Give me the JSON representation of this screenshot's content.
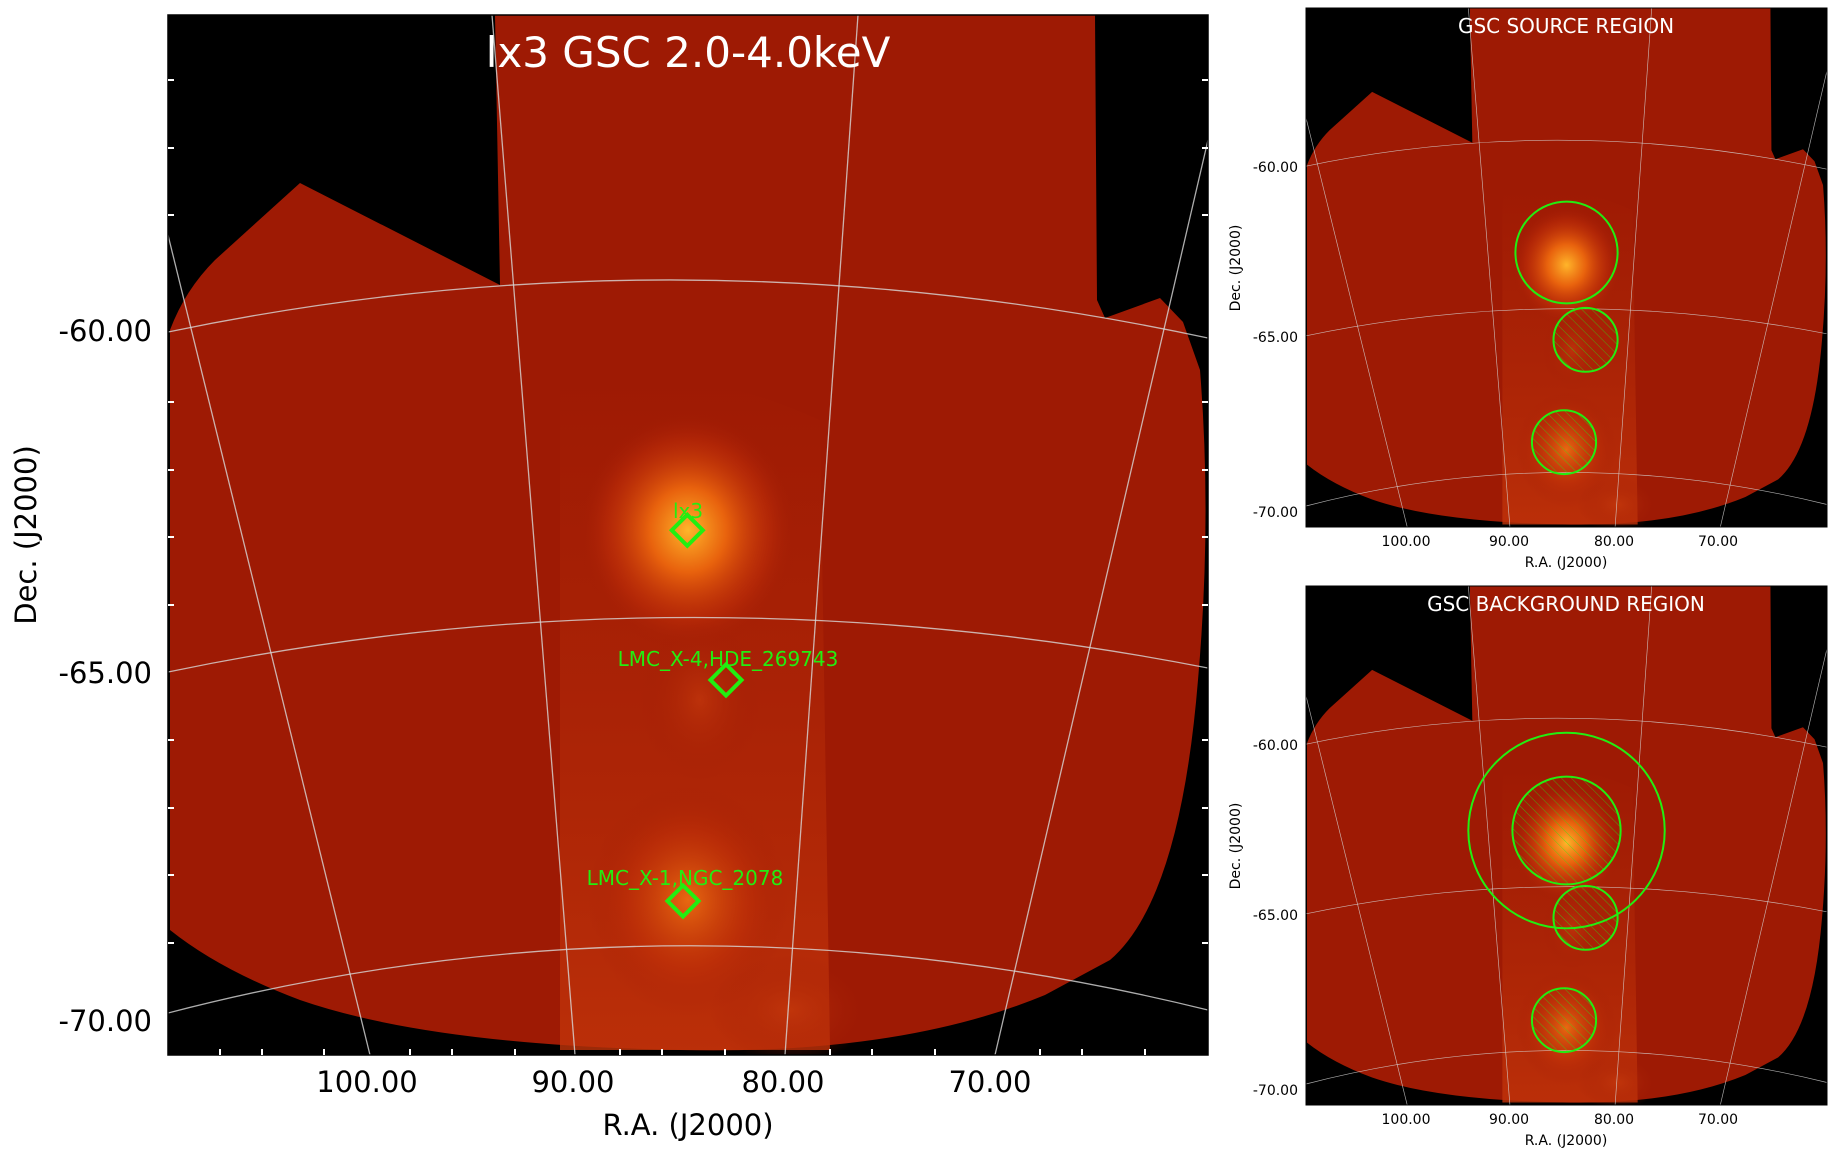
{
  "main_panel": {
    "title": "lx3 GSC 2.0-4.0keV",
    "x_axis_label": "R.A. (J2000)",
    "y_axis_label": "Dec. (J2000)",
    "x_ticks": [
      "100.00",
      "90.00",
      "80.00",
      "70.00"
    ],
    "y_ticks": [
      "-60.00",
      "-65.00",
      "-70.00"
    ],
    "source_labels": {
      "lx3": "lx3",
      "lmc_x4": "LMC_X-4,HDE_269743",
      "lmc_x1": "LMC_X-1,NGC_2078"
    }
  },
  "source_panel": {
    "title": "GSC SOURCE REGION",
    "x_axis_label": "R.A. (J2000)",
    "y_axis_label": "Dec. (J2000)",
    "x_ticks": [
      "100.00",
      "90.00",
      "80.00",
      "70.00"
    ],
    "y_ticks": [
      "-60.00",
      "-65.00",
      "-70.00"
    ]
  },
  "background_panel": {
    "title": "GSC BACKGROUND REGION",
    "x_axis_label": "R.A. (J2000)",
    "y_axis_label": "Dec. (J2000)",
    "x_ticks": [
      "100.00",
      "90.00",
      "80.00",
      "70.00"
    ],
    "y_ticks": [
      "-60.00",
      "-65.00",
      "-70.00"
    ]
  },
  "colors": {
    "background_sky": "#000000",
    "diffuse_emission": "#9e1a04",
    "bright_source": "#ff9a1a",
    "region_marker": "#22ee11",
    "grid": "#d8d8d8",
    "title_text": "#ffffff"
  }
}
